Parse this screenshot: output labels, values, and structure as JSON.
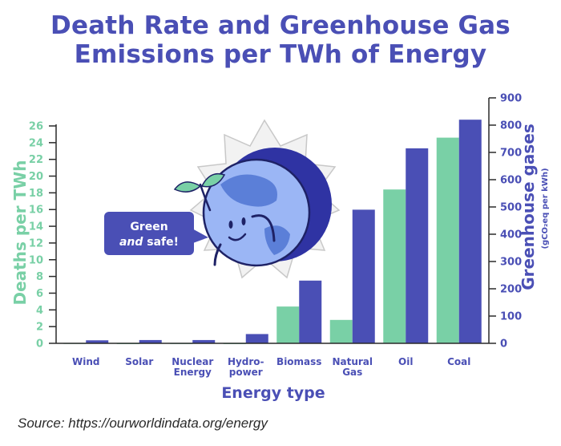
{
  "title_line1": "Death Rate and Greenhouse Gas",
  "title_line2": "Emissions per TWh of Energy",
  "source": "Source: https://ourworldindata.org/energy",
  "bubble": {
    "line1": "Green",
    "line2_em": "and",
    "line2_rest": " safe!"
  },
  "colors": {
    "deaths": "#79d0a6",
    "ghg": "#4a4fb5",
    "title": "#4a4fb5"
  },
  "chart_data": {
    "type": "bar",
    "categories": [
      [
        "Wind"
      ],
      [
        "Solar"
      ],
      [
        "Nuclear",
        "Energy"
      ],
      [
        "Hydro-",
        "power"
      ],
      [
        "Biomass"
      ],
      [
        "Natural",
        "Gas"
      ],
      [
        "Oil"
      ],
      [
        "Coal"
      ]
    ],
    "xlabel": "Energy type",
    "y_left": {
      "label": "Deaths per TWh",
      "min": 0,
      "max": 26,
      "ticks": [
        0,
        2,
        4,
        6,
        8,
        10,
        12,
        14,
        16,
        18,
        20,
        22,
        24,
        26
      ]
    },
    "y_right": {
      "label": "Greenhouse gases",
      "sublabel": "(gCO₂eq per kWh)",
      "min": 0,
      "max": 900,
      "ticks": [
        0,
        100,
        200,
        300,
        400,
        500,
        600,
        700,
        800,
        900
      ]
    },
    "series": [
      {
        "name": "Deaths per TWh",
        "axis": "left",
        "values": [
          0.04,
          0.02,
          0.03,
          0.02,
          4.4,
          2.8,
          18.4,
          24.6
        ]
      },
      {
        "name": "Greenhouse gases",
        "axis": "right",
        "values": [
          11,
          12,
          12,
          34,
          230,
          490,
          715,
          820
        ]
      }
    ]
  }
}
